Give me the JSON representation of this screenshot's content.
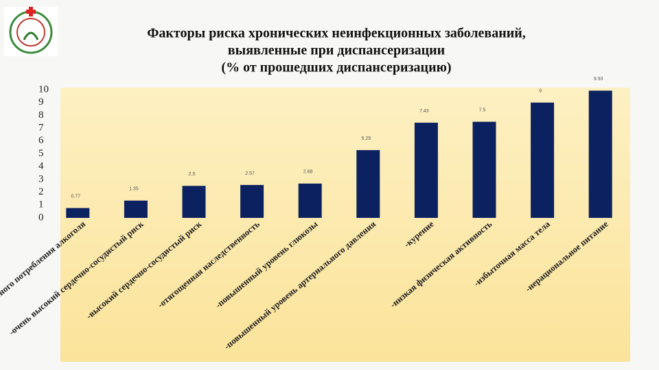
{
  "chart_data": {
    "type": "bar",
    "title": [
      "Факторы риска хронических неинфекционных заболеваний,",
      "выявленные при диспансеризации",
      "(% от прошедших диспансеризацию)"
    ],
    "categories": [
      "-риск пагубного потребления алкоголя",
      "-очень высокий сердечно-сосудистый риск",
      "-высокий сердечно-сосудистый риск",
      "-отягощенная наследственность",
      "-повышенный уровень глюкозы",
      "-повышенный уровень артериального давления",
      "-курение",
      "-низкая физическая активность",
      "-избыточная масса тела",
      "-нерациональное питание"
    ],
    "values": [
      0.77,
      1.35,
      2.5,
      2.57,
      2.68,
      5.29,
      7.43,
      7.5,
      9,
      9.93
    ],
    "color": "#0c2260",
    "ylim": [
      0,
      10
    ],
    "yticks": [
      0,
      1,
      2,
      3,
      4,
      5,
      6,
      7,
      8,
      9,
      10
    ],
    "grid": false
  }
}
